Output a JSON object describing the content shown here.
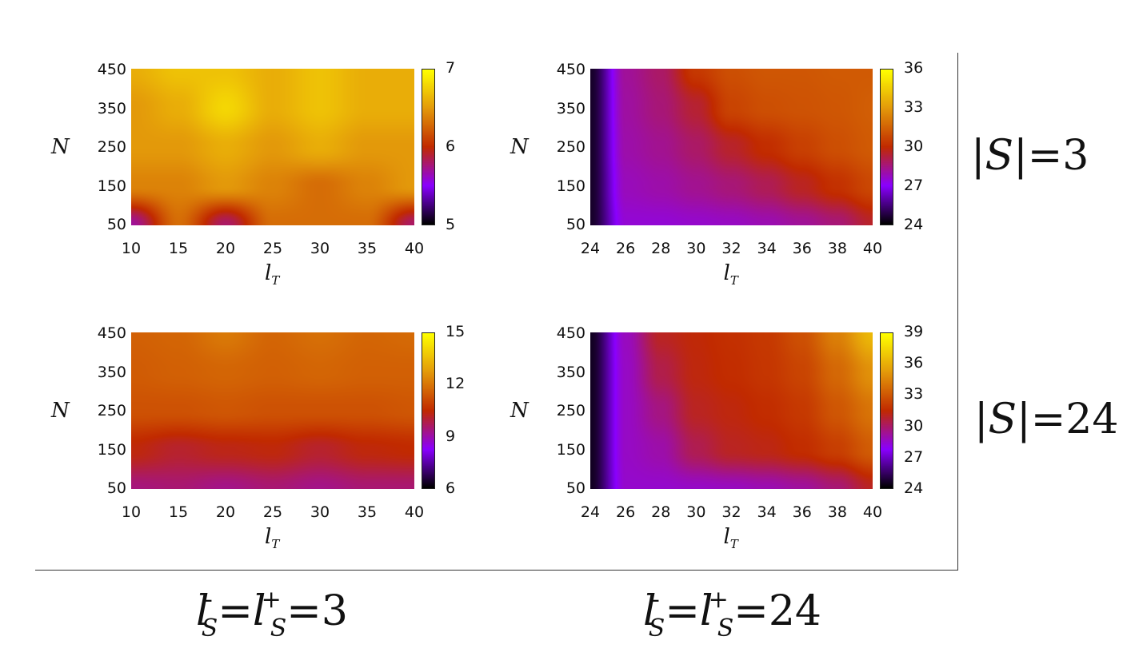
{
  "colormap": {
    "name": "gnuplot-pm3d",
    "stops": [
      "#000000",
      "#8a00ff",
      "#c12a00",
      "#e3990a",
      "#ffff00"
    ]
  },
  "row_labels": [
    "|S|=3",
    "|S|=24"
  ],
  "column_labels": [
    "l_S^- = l_S^+ = 3",
    "l_S^- = l_S^+ = 24"
  ],
  "labels": {
    "row1": "|S|=3",
    "row2": "|S|=24",
    "col1_prefix": "l",
    "col1_value": "=3",
    "col2_value": "=24",
    "eq": "=",
    "sub_S": "S",
    "sup_minus": "-",
    "sup_plus": "+"
  },
  "chart_data": [
    {
      "type": "heatmap",
      "xlabel": "l_T",
      "ylabel": "N",
      "x_label_main": "l",
      "x_label_sub": "T",
      "y_label": "N",
      "x": [
        10,
        15,
        20,
        25,
        30,
        35,
        40
      ],
      "y": [
        50,
        150,
        250,
        350,
        450
      ],
      "xticks": [
        "10",
        "15",
        "20",
        "25",
        "30",
        "35",
        "40"
      ],
      "yticks": [
        "50",
        "150",
        "250",
        "350",
        "450"
      ],
      "zlim": [
        5,
        7
      ],
      "cbticks": [
        "5",
        "6",
        "7"
      ],
      "z": [
        [
          5.7,
          6.3,
          5.8,
          6.3,
          6.3,
          6.3,
          5.8
        ],
        [
          6.4,
          6.4,
          6.5,
          6.4,
          6.3,
          6.4,
          6.5
        ],
        [
          6.5,
          6.5,
          6.6,
          6.5,
          6.6,
          6.5,
          6.5
        ],
        [
          6.5,
          6.6,
          6.8,
          6.6,
          6.7,
          6.6,
          6.6
        ],
        [
          6.6,
          6.7,
          6.7,
          6.6,
          6.7,
          6.6,
          6.6
        ]
      ]
    },
    {
      "type": "heatmap",
      "xlabel": "l_T",
      "ylabel": "N",
      "x_label_main": "l",
      "x_label_sub": "T",
      "y_label": "N",
      "x": [
        24,
        26,
        28,
        30,
        32,
        34,
        36,
        38,
        40
      ],
      "y": [
        50,
        150,
        250,
        350,
        450
      ],
      "xticks": [
        "24",
        "26",
        "28",
        "30",
        "32",
        "34",
        "36",
        "38",
        "40"
      ],
      "yticks": [
        "50",
        "150",
        "250",
        "350",
        "450"
      ],
      "zlim": [
        24,
        36
      ],
      "cbticks": [
        "24",
        "27",
        "30",
        "33",
        "36"
      ],
      "z": [
        [
          24.5,
          27.5,
          27.5,
          27.6,
          27.7,
          27.9,
          28.2,
          28.6,
          29.5
        ],
        [
          24.5,
          27.8,
          28.0,
          28.3,
          28.6,
          29.0,
          29.6,
          30.2,
          30.8
        ],
        [
          24.5,
          28.0,
          28.3,
          28.8,
          29.5,
          30.1,
          30.6,
          31.0,
          31.3
        ],
        [
          24.5,
          28.1,
          28.6,
          29.4,
          30.7,
          31.0,
          31.1,
          31.2,
          31.4
        ],
        [
          24.5,
          28.2,
          28.8,
          30.4,
          31.0,
          31.2,
          31.2,
          31.3,
          31.3
        ]
      ]
    },
    {
      "type": "heatmap",
      "xlabel": "l_T",
      "ylabel": "N",
      "x_label_main": "l",
      "x_label_sub": "T",
      "y_label": "N",
      "x": [
        10,
        15,
        20,
        25,
        30,
        35,
        40
      ],
      "y": [
        50,
        150,
        250,
        350,
        450
      ],
      "xticks": [
        "10",
        "15",
        "20",
        "25",
        "30",
        "35",
        "40"
      ],
      "yticks": [
        "50",
        "150",
        "250",
        "350",
        "450"
      ],
      "zlim": [
        6,
        15
      ],
      "cbticks": [
        "6",
        "9",
        "12",
        "15"
      ],
      "z": [
        [
          9.4,
          9.5,
          9.3,
          9.5,
          9.3,
          9.5,
          9.5
        ],
        [
          10.4,
          10.1,
          10.3,
          10.4,
          10.1,
          10.4,
          10.5
        ],
        [
          11.3,
          11.3,
          11.4,
          11.3,
          11.3,
          11.3,
          11.4
        ],
        [
          11.5,
          11.6,
          11.7,
          11.6,
          11.7,
          11.6,
          11.6
        ],
        [
          11.6,
          11.7,
          12.1,
          11.7,
          11.9,
          11.7,
          11.8
        ]
      ]
    },
    {
      "type": "heatmap",
      "xlabel": "l_T",
      "ylabel": "N",
      "x_label_main": "l",
      "x_label_sub": "T",
      "y_label": "N",
      "x": [
        24,
        26,
        28,
        30,
        32,
        34,
        36,
        38,
        40
      ],
      "y": [
        50,
        150,
        250,
        350,
        450
      ],
      "xticks": [
        "24",
        "26",
        "28",
        "30",
        "32",
        "34",
        "36",
        "38",
        "40"
      ],
      "yticks": [
        "50",
        "150",
        "250",
        "350",
        "450"
      ],
      "zlim": [
        24,
        39
      ],
      "cbticks": [
        "24",
        "27",
        "30",
        "33",
        "36",
        "39"
      ],
      "z": [
        [
          24.5,
          28.5,
          28.5,
          28.6,
          28.7,
          28.9,
          29.2,
          29.8,
          31.0
        ],
        [
          24.5,
          28.6,
          29.0,
          30.3,
          31.0,
          31.2,
          31.6,
          32.2,
          33.2
        ],
        [
          24.5,
          28.6,
          29.6,
          31.0,
          31.3,
          31.6,
          32.0,
          33.0,
          34.0
        ],
        [
          24.5,
          28.6,
          30.4,
          31.3,
          31.6,
          31.9,
          32.4,
          33.6,
          35.0
        ],
        [
          24.5,
          28.7,
          31.0,
          31.4,
          31.7,
          32.0,
          32.8,
          34.4,
          36.4
        ]
      ]
    }
  ]
}
